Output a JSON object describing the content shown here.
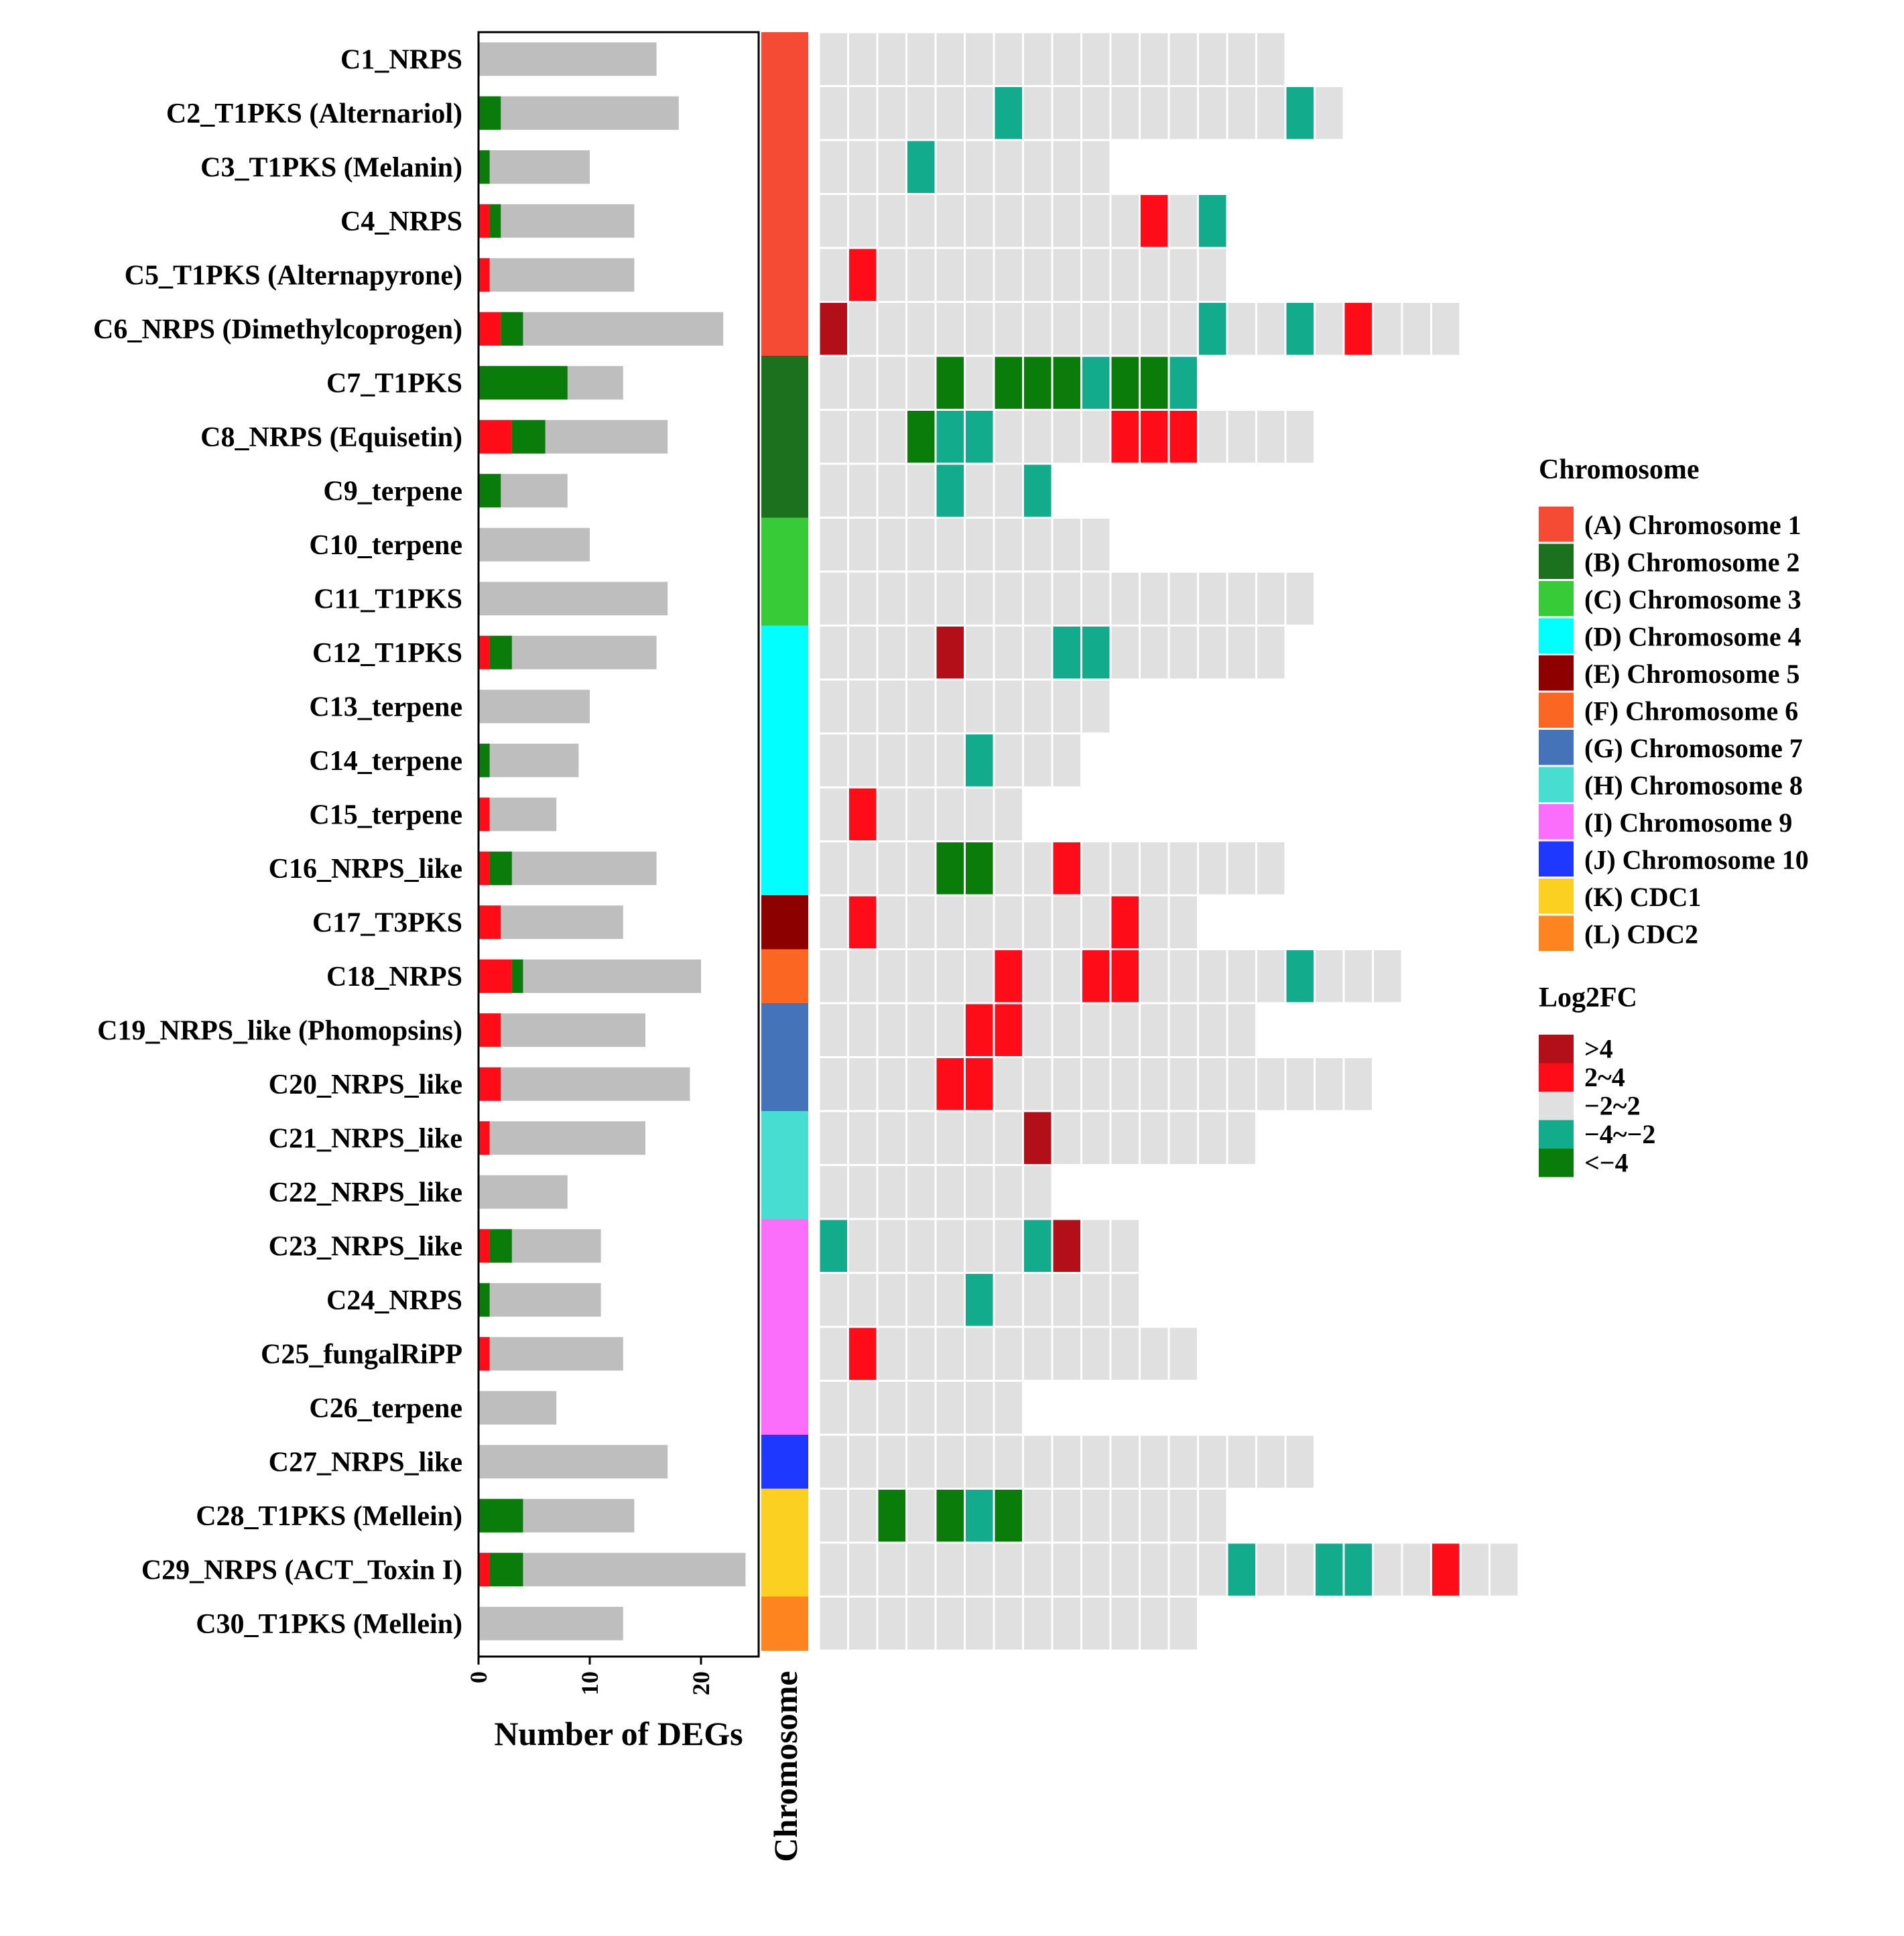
{
  "chart_data": {
    "type": "bar + heatmap",
    "clusters": [
      {
        "name": "C1_NRPS",
        "up": 0,
        "down": 0,
        "total": 16,
        "chromosome": "A",
        "genes": [
          "n",
          "n",
          "n",
          "n",
          "n",
          "n",
          "n",
          "n",
          "n",
          "n",
          "n",
          "n",
          "n",
          "n",
          "n",
          "n"
        ]
      },
      {
        "name": "C2_T1PKS (Alternariol)",
        "up": 0,
        "down": 2,
        "total": 18,
        "chromosome": "A",
        "genes": [
          "n",
          "n",
          "n",
          "n",
          "n",
          "n",
          "d",
          "n",
          "n",
          "n",
          "n",
          "n",
          "n",
          "n",
          "n",
          "n",
          "d",
          "n"
        ]
      },
      {
        "name": "C3_T1PKS (Melanin)",
        "up": 0,
        "down": 1,
        "total": 10,
        "chromosome": "A",
        "genes": [
          "n",
          "n",
          "n",
          "d",
          "n",
          "n",
          "n",
          "n",
          "n",
          "n"
        ]
      },
      {
        "name": "C4_NRPS",
        "up": 1,
        "down": 1,
        "total": 14,
        "chromosome": "A",
        "genes": [
          "n",
          "n",
          "n",
          "n",
          "n",
          "n",
          "n",
          "n",
          "n",
          "n",
          "n",
          "u",
          "n",
          "d"
        ]
      },
      {
        "name": "C5_T1PKS (Alternapyrone)",
        "up": 1,
        "down": 0,
        "total": 14,
        "chromosome": "A",
        "genes": [
          "n",
          "u",
          "n",
          "n",
          "n",
          "n",
          "n",
          "n",
          "n",
          "n",
          "n",
          "n",
          "n",
          "n"
        ]
      },
      {
        "name": "C6_NRPS (Dimethylcoprogen)",
        "up": 2,
        "down": 2,
        "total": 22,
        "chromosome": "A",
        "genes": [
          "U",
          "n",
          "n",
          "n",
          "n",
          "n",
          "n",
          "n",
          "n",
          "n",
          "n",
          "n",
          "n",
          "d",
          "n",
          "n",
          "d",
          "n",
          "u",
          "n",
          "n",
          "n"
        ]
      },
      {
        "name": "C7_T1PKS",
        "up": 0,
        "down": 8,
        "total": 13,
        "chromosome": "B",
        "genes": [
          "n",
          "n",
          "n",
          "n",
          "D",
          "n",
          "D",
          "D",
          "D",
          "d",
          "D",
          "D",
          "d"
        ]
      },
      {
        "name": "C8_NRPS (Equisetin)",
        "up": 3,
        "down": 3,
        "total": 17,
        "chromosome": "B",
        "genes": [
          "n",
          "n",
          "n",
          "D",
          "d",
          "d",
          "n",
          "n",
          "n",
          "n",
          "u",
          "u",
          "u",
          "n",
          "n",
          "n",
          "n"
        ]
      },
      {
        "name": "C9_terpene",
        "up": 0,
        "down": 2,
        "total": 8,
        "chromosome": "B",
        "genes": [
          "n",
          "n",
          "n",
          "n",
          "d",
          "n",
          "n",
          "d"
        ]
      },
      {
        "name": "C10_terpene",
        "up": 0,
        "down": 0,
        "total": 10,
        "chromosome": "C",
        "genes": [
          "n",
          "n",
          "n",
          "n",
          "n",
          "n",
          "n",
          "n",
          "n",
          "n"
        ]
      },
      {
        "name": "C11_T1PKS",
        "up": 0,
        "down": 0,
        "total": 17,
        "chromosome": "C",
        "genes": [
          "n",
          "n",
          "n",
          "n",
          "n",
          "n",
          "n",
          "n",
          "n",
          "n",
          "n",
          "n",
          "n",
          "n",
          "n",
          "n",
          "n"
        ]
      },
      {
        "name": "C12_T1PKS",
        "up": 1,
        "down": 2,
        "total": 16,
        "chromosome": "D",
        "genes": [
          "n",
          "n",
          "n",
          "n",
          "U",
          "n",
          "n",
          "n",
          "d",
          "d",
          "n",
          "n",
          "n",
          "n",
          "n",
          "n"
        ]
      },
      {
        "name": "C13_terpene",
        "up": 0,
        "down": 0,
        "total": 10,
        "chromosome": "D",
        "genes": [
          "n",
          "n",
          "n",
          "n",
          "n",
          "n",
          "n",
          "n",
          "n",
          "n"
        ]
      },
      {
        "name": "C14_terpene",
        "up": 0,
        "down": 1,
        "total": 9,
        "chromosome": "D",
        "genes": [
          "n",
          "n",
          "n",
          "n",
          "n",
          "d",
          "n",
          "n",
          "n"
        ]
      },
      {
        "name": "C15_terpene",
        "up": 1,
        "down": 0,
        "total": 7,
        "chromosome": "D",
        "genes": [
          "n",
          "u",
          "n",
          "n",
          "n",
          "n",
          "n"
        ]
      },
      {
        "name": "C16_NRPS_like",
        "up": 1,
        "down": 2,
        "total": 16,
        "chromosome": "D",
        "genes": [
          "n",
          "n",
          "n",
          "n",
          "D",
          "D",
          "n",
          "n",
          "u",
          "n",
          "n",
          "n",
          "n",
          "n",
          "n",
          "n"
        ]
      },
      {
        "name": "C17_T3PKS",
        "up": 2,
        "down": 0,
        "total": 13,
        "chromosome": "E",
        "genes": [
          "n",
          "u",
          "n",
          "n",
          "n",
          "n",
          "n",
          "n",
          "n",
          "n",
          "u",
          "n",
          "n"
        ]
      },
      {
        "name": "C18_NRPS",
        "up": 3,
        "down": 1,
        "total": 20,
        "chromosome": "F",
        "genes": [
          "n",
          "n",
          "n",
          "n",
          "n",
          "n",
          "u",
          "n",
          "n",
          "u",
          "u",
          "n",
          "n",
          "n",
          "n",
          "n",
          "d",
          "n",
          "n",
          "n"
        ]
      },
      {
        "name": "C19_NRPS_like (Phomopsins)",
        "up": 2,
        "down": 0,
        "total": 15,
        "chromosome": "G",
        "genes": [
          "n",
          "n",
          "n",
          "n",
          "n",
          "u",
          "u",
          "n",
          "n",
          "n",
          "n",
          "n",
          "n",
          "n",
          "n"
        ]
      },
      {
        "name": "C20_NRPS_like",
        "up": 2,
        "down": 0,
        "total": 19,
        "chromosome": "G",
        "genes": [
          "n",
          "n",
          "n",
          "n",
          "u",
          "u",
          "n",
          "n",
          "n",
          "n",
          "n",
          "n",
          "n",
          "n",
          "n",
          "n",
          "n",
          "n",
          "n"
        ]
      },
      {
        "name": "C21_NRPS_like",
        "up": 1,
        "down": 0,
        "total": 15,
        "chromosome": "H",
        "genes": [
          "n",
          "n",
          "n",
          "n",
          "n",
          "n",
          "n",
          "U",
          "n",
          "n",
          "n",
          "n",
          "n",
          "n",
          "n"
        ]
      },
      {
        "name": "C22_NRPS_like",
        "up": 0,
        "down": 0,
        "total": 8,
        "chromosome": "H",
        "genes": [
          "n",
          "n",
          "n",
          "n",
          "n",
          "n",
          "n",
          "n"
        ]
      },
      {
        "name": "C23_NRPS_like",
        "up": 1,
        "down": 2,
        "total": 11,
        "chromosome": "I",
        "genes": [
          "d",
          "n",
          "n",
          "n",
          "n",
          "n",
          "n",
          "d",
          "U",
          "n",
          "n"
        ]
      },
      {
        "name": "C24_NRPS",
        "up": 0,
        "down": 1,
        "total": 11,
        "chromosome": "I",
        "genes": [
          "n",
          "n",
          "n",
          "n",
          "n",
          "d",
          "n",
          "n",
          "n",
          "n",
          "n"
        ]
      },
      {
        "name": "C25_fungalRiPP",
        "up": 1,
        "down": 0,
        "total": 13,
        "chromosome": "I",
        "genes": [
          "n",
          "u",
          "n",
          "n",
          "n",
          "n",
          "n",
          "n",
          "n",
          "n",
          "n",
          "n",
          "n"
        ]
      },
      {
        "name": "C26_terpene",
        "up": 0,
        "down": 0,
        "total": 7,
        "chromosome": "I",
        "genes": [
          "n",
          "n",
          "n",
          "n",
          "n",
          "n",
          "n"
        ]
      },
      {
        "name": "C27_NRPS_like",
        "up": 0,
        "down": 0,
        "total": 17,
        "chromosome": "J",
        "genes": [
          "n",
          "n",
          "n",
          "n",
          "n",
          "n",
          "n",
          "n",
          "n",
          "n",
          "n",
          "n",
          "n",
          "n",
          "n",
          "n",
          "n"
        ]
      },
      {
        "name": "C28_T1PKS (Mellein)",
        "up": 0,
        "down": 4,
        "total": 14,
        "chromosome": "K",
        "genes": [
          "n",
          "n",
          "D",
          "n",
          "D",
          "d",
          "D",
          "n",
          "n",
          "n",
          "n",
          "n",
          "n",
          "n"
        ]
      },
      {
        "name": "C29_NRPS (ACT_Toxin I)",
        "up": 1,
        "down": 3,
        "total": 24,
        "chromosome": "K",
        "genes": [
          "n",
          "n",
          "n",
          "n",
          "n",
          "n",
          "n",
          "n",
          "n",
          "n",
          "n",
          "n",
          "n",
          "n",
          "d",
          "n",
          "n",
          "d",
          "d",
          "n",
          "n",
          "u",
          "n",
          "n"
        ]
      },
      {
        "name": "C30_T1PKS (Mellein)",
        "up": 0,
        "down": 0,
        "total": 13,
        "chromosome": "L",
        "genes": [
          "n",
          "n",
          "n",
          "n",
          "n",
          "n",
          "n",
          "n",
          "n",
          "n",
          "n",
          "n",
          "n"
        ]
      }
    ],
    "bar_axis": {
      "title": "Number of DEGs",
      "ticks": [
        0,
        10,
        20
      ],
      "range": [
        0,
        25
      ]
    },
    "chromosome_axis_title": "Chromosome",
    "chromosome_legend": {
      "title": "Chromosome",
      "items": [
        {
          "key": "A",
          "label": "(A) Chromosome 1",
          "color": "#f54a33"
        },
        {
          "key": "B",
          "label": "(B) Chromosome 2",
          "color": "#1b711e"
        },
        {
          "key": "C",
          "label": "(C) Chromosome 3",
          "color": "#37cc37"
        },
        {
          "key": "D",
          "label": "(D) Chromosome 4",
          "color": "#00ffff"
        },
        {
          "key": "E",
          "label": "(E) Chromosome 5",
          "color": "#8c0000"
        },
        {
          "key": "F",
          "label": "(F) Chromosome 6",
          "color": "#fb6623"
        },
        {
          "key": "G",
          "label": "(G) Chromosome 7",
          "color": "#4573b9"
        },
        {
          "key": "H",
          "label": "(H) Chromosome 8",
          "color": "#48ddd1"
        },
        {
          "key": "I",
          "label": "(I) Chromosome 9",
          "color": "#fb6efb"
        },
        {
          "key": "J",
          "label": "(J) Chromosome 10",
          "color": "#1f38ff"
        },
        {
          "key": "K",
          "label": "(K) CDC1",
          "color": "#fcd020"
        },
        {
          "key": "L",
          "label": "(L) CDC2",
          "color": "#fe841f"
        }
      ]
    },
    "log2fc_legend": {
      "title": "Log2FC",
      "items": [
        {
          "key": "U",
          "label": ">4",
          "color": "#b20f19"
        },
        {
          "key": "u",
          "label": "2~4",
          "color": "#fe0d18"
        },
        {
          "key": "n",
          "label": "−2~2",
          "color": "#e0e0e0"
        },
        {
          "key": "d",
          "label": "−4~−2",
          "color": "#12ab8c"
        },
        {
          "key": "D",
          "label": "<−4",
          "color": "#0a7c0a"
        }
      ]
    },
    "bar_colors": {
      "up": "#fe0d18",
      "down": "#0a7c0a",
      "total": "#bebebe"
    }
  }
}
